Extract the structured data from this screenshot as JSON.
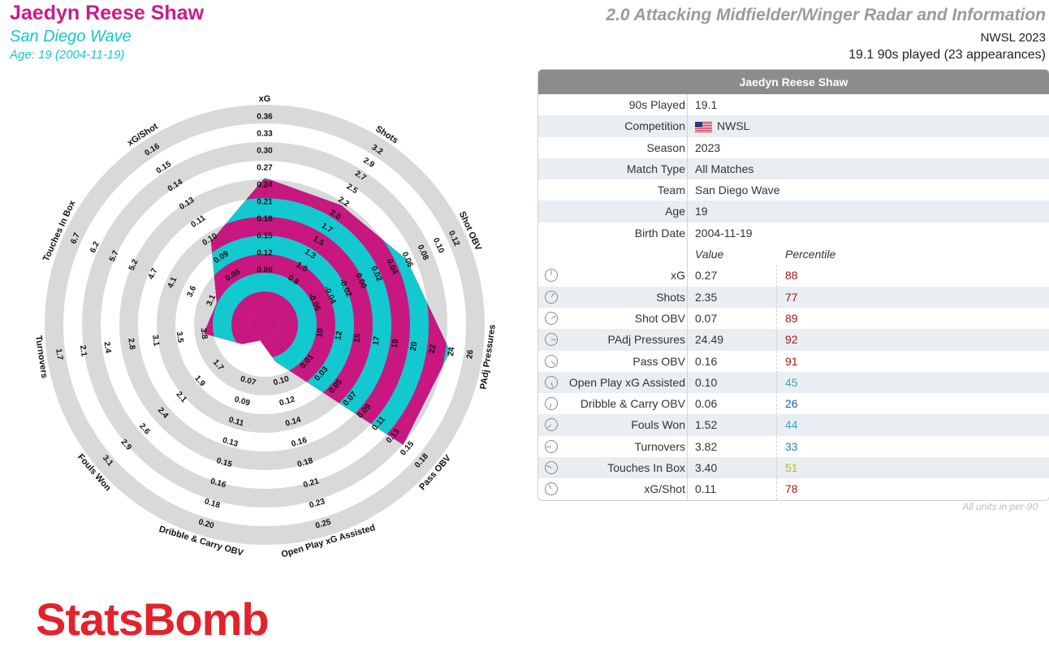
{
  "header": {
    "player_name": "Jaedyn Reese Shaw",
    "team": "San Diego Wave",
    "age_line": "Age: 19 (2004-11-19)",
    "title": "2.0 Attacking Midfielder/Winger Radar and Information",
    "competition_line": "NWSL 2023",
    "played_line": "19.1 90s played (23 appearances)"
  },
  "colors": {
    "magenta": "#c8177f",
    "cyan": "#13c9d0",
    "ring_grey": "#d9d9d9",
    "brand_red": "#e3222b"
  },
  "chart_data": {
    "type": "radar",
    "axes": [
      {
        "label": "xG",
        "ticks": [
          "0.09",
          "0.12",
          "0.15",
          "0.18",
          "0.21",
          "0.24",
          "0.27",
          "0.30",
          "0.33",
          "0.36"
        ],
        "value": 0.27,
        "range": [
          0.06,
          0.36
        ]
      },
      {
        "label": "Shots",
        "ticks": [
          "0.8",
          "1.0",
          "1.3",
          "1.5",
          "1.7",
          "2.0",
          "2.2",
          "2.5",
          "2.7",
          "2.9",
          "3.2"
        ],
        "value": 2.35,
        "range": [
          0.6,
          3.2
        ]
      },
      {
        "label": "Shot OBV",
        "ticks": [
          "-0.06",
          "-0.04",
          "-0.02",
          "0.00",
          "0.02",
          "0.04",
          "0.06",
          "0.08",
          "0.10",
          "0.12"
        ],
        "value": 0.07,
        "range": [
          -0.08,
          0.12
        ]
      },
      {
        "label": "PAdj Pressures",
        "ticks": [
          "10",
          "12",
          "15",
          "17",
          "19",
          "20",
          "22",
          "24",
          "26"
        ],
        "value": 24.49,
        "range": [
          8,
          26
        ]
      },
      {
        "label": "Pass OBV",
        "ticks": [
          "0.01",
          "0.03",
          "0.05",
          "0.07",
          "0.09",
          "0.11",
          "0.13",
          "0.15",
          "0.18"
        ],
        "value": 0.16,
        "range": [
          -0.01,
          0.18
        ]
      },
      {
        "label": "Open Play xG Assisted",
        "ticks": [
          "0.10",
          "0.12",
          "0.14",
          "0.16",
          "0.18",
          "0.21",
          "0.23",
          "0.25"
        ],
        "value": 0.1,
        "range": [
          0.08,
          0.25
        ]
      },
      {
        "label": "Dribble & Carry OBV",
        "ticks": [
          "0.07",
          "0.09",
          "0.11",
          "0.13",
          "0.15",
          "0.16",
          "0.18",
          "0.20"
        ],
        "value": 0.06,
        "range": [
          0.06,
          0.2
        ]
      },
      {
        "label": "Fouls Won",
        "ticks": [
          "1.7",
          "1.9",
          "2.1",
          "2.4",
          "2.6",
          "2.9",
          "3.1"
        ],
        "value": 1.52,
        "range": [
          1.4,
          3.1
        ]
      },
      {
        "label": "Turnovers",
        "ticks": [
          "3.8",
          "3.5",
          "3.1",
          "2.8",
          "2.4",
          "2.1",
          "1.7"
        ],
        "value": 3.82,
        "range": [
          4.5,
          1.7
        ]
      },
      {
        "label": "Touches In Box",
        "ticks": [
          "3.1",
          "3.6",
          "4.1",
          "4.7",
          "5.2",
          "5.7",
          "6.2",
          "6.7"
        ],
        "value": 3.4,
        "range": [
          2.6,
          6.7
        ]
      },
      {
        "label": "xG/Shot",
        "ticks": [
          "0.08",
          "0.09",
          "0.10",
          "0.11",
          "0.13",
          "0.14",
          "0.15",
          "0.16"
        ],
        "value": 0.11,
        "range": [
          0.07,
          0.16
        ]
      }
    ],
    "inner_tick_labels": [
      "0.06",
      "0.04",
      "0.9",
      "1.2",
      "0.06",
      "0.08",
      "0.10",
      "-0.02",
      "0.01",
      "0.03",
      "0.06",
      "1.0",
      "4.9",
      "4.5",
      "4.2",
      "2.6",
      "2.1",
      "0.07",
      "-0.08",
      "-0.04",
      "0.02"
    ],
    "grid": "concentric rings"
  },
  "table": {
    "header": "Jaedyn Reese Shaw",
    "info_rows": [
      {
        "label": "90s Played",
        "value": "19.1"
      },
      {
        "label": "Competition",
        "value": "NWSL",
        "flag": "us-flag"
      },
      {
        "label": "Season",
        "value": "2023"
      },
      {
        "label": "Match Type",
        "value": "All Matches"
      },
      {
        "label": "Team",
        "value": "San Diego Wave"
      },
      {
        "label": "Age",
        "value": "19"
      },
      {
        "label": "Birth Date",
        "value": "2004-11-19"
      }
    ],
    "col_value": "Value",
    "col_percentile": "Percentile",
    "metric_rows": [
      {
        "label": "xG",
        "value": "0.27",
        "percentile": "88",
        "color": "#a11a12"
      },
      {
        "label": "Shots",
        "value": "2.35",
        "percentile": "77",
        "color": "#a11a12"
      },
      {
        "label": "Shot OBV",
        "value": "0.07",
        "percentile": "89",
        "color": "#a11a12"
      },
      {
        "label": "PAdj Pressures",
        "value": "24.49",
        "percentile": "92",
        "color": "#a11a12"
      },
      {
        "label": "Pass OBV",
        "value": "0.16",
        "percentile": "91",
        "color": "#a11a12"
      },
      {
        "label": "Open Play xG Assisted",
        "value": "0.10",
        "percentile": "45",
        "color": "#3aa5c0"
      },
      {
        "label": "Dribble & Carry OBV",
        "value": "0.06",
        "percentile": "26",
        "color": "#1f5fa0"
      },
      {
        "label": "Fouls Won",
        "value": "1.52",
        "percentile": "44",
        "color": "#3aa5c0"
      },
      {
        "label": "Turnovers",
        "value": "3.82",
        "percentile": "33",
        "color": "#2f7fb0"
      },
      {
        "label": "Touches In Box",
        "value": "3.40",
        "percentile": "51",
        "color": "#b8b830"
      },
      {
        "label": "xG/Shot",
        "value": "0.11",
        "percentile": "78",
        "color": "#a11a12"
      }
    ],
    "footnote": "All units in per-90"
  },
  "logo": {
    "text": "StatsBomb"
  }
}
